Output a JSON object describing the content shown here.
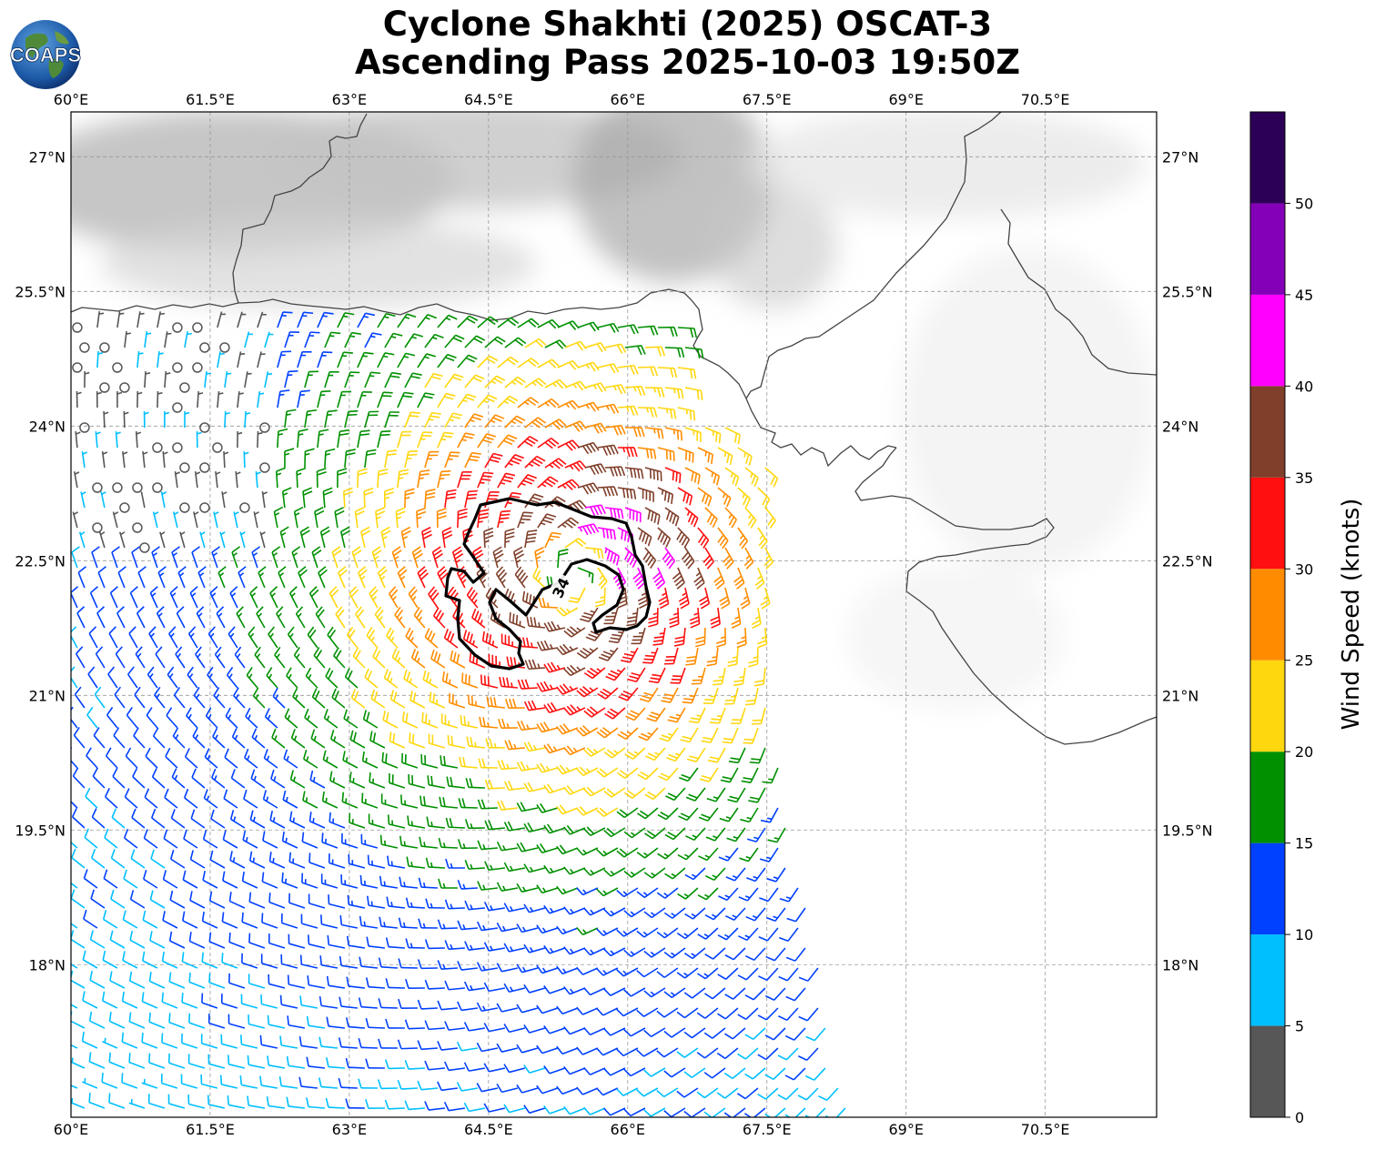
{
  "title": {
    "line1": "Cyclone Shakhti (2025) OSCAT-3",
    "line2": "Ascending Pass 2025-10-03 19:50Z"
  },
  "logo": {
    "text": "COAPS"
  },
  "map": {
    "lon_range": [
      60,
      71.7
    ],
    "lat_range": [
      16.3,
      27.5
    ],
    "lon_ticks": [
      "60°E",
      "61.5°E",
      "63°E",
      "64.5°E",
      "66°E",
      "67.5°E",
      "69°E",
      "70.5°E"
    ],
    "lat_ticks": [
      "27°N",
      "25.5°N",
      "24°N",
      "22.5°N",
      "21°N",
      "19.5°N",
      "18°N"
    ],
    "grid": true,
    "contour_label": "34",
    "cyclone_center": {
      "lon": 65.4,
      "lat": 22.35
    }
  },
  "colorbar": {
    "label": "Wind Speed (knots)",
    "tick_labels": [
      "0",
      "5",
      "10",
      "15",
      "20",
      "25",
      "30",
      "35",
      "40",
      "45",
      "50"
    ],
    "bins": [
      {
        "from": 0,
        "to": 5,
        "color": "#575757"
      },
      {
        "from": 5,
        "to": 10,
        "color": "#00bfff"
      },
      {
        "from": 10,
        "to": 15,
        "color": "#0040ff"
      },
      {
        "from": 15,
        "to": 20,
        "color": "#009000"
      },
      {
        "from": 20,
        "to": 25,
        "color": "#ffd70f"
      },
      {
        "from": 25,
        "to": 30,
        "color": "#ff8c00"
      },
      {
        "from": 30,
        "to": 35,
        "color": "#ff0f0f"
      },
      {
        "from": 35,
        "to": 40,
        "color": "#7f3f2a"
      },
      {
        "from": 40,
        "to": 45,
        "color": "#ff00ff"
      },
      {
        "from": 45,
        "to": 50,
        "color": "#8400b8"
      },
      {
        "from": 50,
        "to": 55,
        "color": "#2d0057"
      }
    ]
  }
}
